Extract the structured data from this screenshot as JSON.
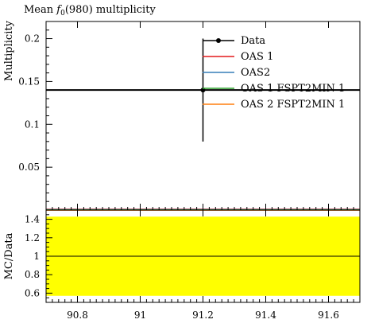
{
  "chart_data": [
    {
      "type": "scatter",
      "title_prefix": "Mean ",
      "title_symbol": "f",
      "title_subscript": "0",
      "title_suffix": "(980) multiplicity",
      "ylabel": "Multiplicity",
      "xlim": [
        90.7,
        91.7
      ],
      "ylim": [
        0,
        0.22
      ],
      "yticks": [
        0.05,
        0.1,
        0.15,
        0.2
      ],
      "ytick_labels": [
        "0.05",
        "0.1",
        "0.15",
        "0.2"
      ],
      "legend_position": "top-right",
      "series": [
        {
          "name": "Data",
          "color": "#000000",
          "marker": "point",
          "points": [
            {
              "x": 91.2,
              "y": 0.14,
              "xerr": [
                90.7,
                91.7
              ],
              "yerr": [
                0.08,
                0.2
              ]
            }
          ]
        },
        {
          "name": "OAS 1",
          "color": "#e41a1c",
          "flat_value": 0
        },
        {
          "name": "OAS2",
          "color": "#377eb8",
          "flat_value": 0
        },
        {
          "name": "OAS 1 FSPT2MIN 1",
          "color": "#2ca02c",
          "flat_value": 0
        },
        {
          "name": "OAS 2 FSPT2MIN 1",
          "color": "#ff7f0e",
          "flat_value": 0
        }
      ]
    },
    {
      "type": "line",
      "ylabel": "MC/Data",
      "xlim": [
        90.7,
        91.7
      ],
      "ylim": [
        0.5,
        1.5
      ],
      "xticks": [
        90.8,
        91,
        91.2,
        91.4,
        91.6
      ],
      "xtick_labels": [
        "90.8",
        "91",
        "91.2",
        "91.4",
        "91.6"
      ],
      "yticks": [
        0.6,
        0.8,
        1,
        1.2,
        1.4
      ],
      "ytick_labels": [
        "0.6",
        "0.8",
        "1",
        "1.2",
        "1.4"
      ],
      "band": {
        "lower": 0.571,
        "upper": 1.429,
        "color": "#ffff00"
      },
      "reference_line": 1
    }
  ]
}
